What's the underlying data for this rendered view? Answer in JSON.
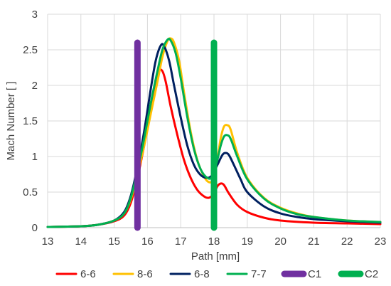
{
  "chart_data": {
    "type": "line",
    "title": "",
    "xlabel": "Path [mm]",
    "ylabel": "Mach Number [ ]",
    "xlim": [
      13,
      23
    ],
    "ylim": [
      0,
      3
    ],
    "xticks": [
      "13",
      "14",
      "15",
      "16",
      "17",
      "18",
      "19",
      "20",
      "21",
      "22",
      "23"
    ],
    "yticks": [
      "0",
      "0.5",
      "1",
      "1.5",
      "2",
      "2.5",
      "3"
    ],
    "grid": true,
    "legend": "bottom",
    "series": [
      {
        "name": "6-6",
        "color": "#ff0000",
        "points": [
          [
            13,
            0.01
          ],
          [
            14,
            0.02
          ],
          [
            14.5,
            0.04
          ],
          [
            15,
            0.09
          ],
          [
            15.3,
            0.17
          ],
          [
            15.5,
            0.35
          ],
          [
            15.7,
            0.7
          ],
          [
            15.9,
            1.15
          ],
          [
            16.1,
            1.65
          ],
          [
            16.25,
            2.0
          ],
          [
            16.35,
            2.2
          ],
          [
            16.45,
            2.2
          ],
          [
            16.55,
            2.05
          ],
          [
            16.7,
            1.7
          ],
          [
            16.9,
            1.3
          ],
          [
            17.1,
            0.95
          ],
          [
            17.3,
            0.7
          ],
          [
            17.5,
            0.53
          ],
          [
            17.7,
            0.44
          ],
          [
            17.85,
            0.42
          ],
          [
            18.0,
            0.48
          ],
          [
            18.1,
            0.58
          ],
          [
            18.2,
            0.62
          ],
          [
            18.3,
            0.6
          ],
          [
            18.45,
            0.48
          ],
          [
            18.7,
            0.32
          ],
          [
            19,
            0.22
          ],
          [
            19.5,
            0.14
          ],
          [
            20,
            0.1
          ],
          [
            21,
            0.07
          ],
          [
            22,
            0.06
          ],
          [
            23,
            0.05
          ]
        ]
      },
      {
        "name": "8-6",
        "color": "#ffc000",
        "points": [
          [
            13,
            0.01
          ],
          [
            14,
            0.02
          ],
          [
            14.5,
            0.04
          ],
          [
            15,
            0.1
          ],
          [
            15.3,
            0.2
          ],
          [
            15.5,
            0.4
          ],
          [
            15.7,
            0.75
          ],
          [
            15.9,
            1.15
          ],
          [
            16.1,
            1.6
          ],
          [
            16.3,
            2.05
          ],
          [
            16.45,
            2.4
          ],
          [
            16.6,
            2.62
          ],
          [
            16.7,
            2.66
          ],
          [
            16.8,
            2.6
          ],
          [
            16.95,
            2.35
          ],
          [
            17.1,
            1.9
          ],
          [
            17.3,
            1.35
          ],
          [
            17.5,
            0.95
          ],
          [
            17.7,
            0.72
          ],
          [
            17.85,
            0.64
          ],
          [
            18.0,
            0.68
          ],
          [
            18.1,
            0.95
          ],
          [
            18.2,
            1.25
          ],
          [
            18.3,
            1.42
          ],
          [
            18.4,
            1.44
          ],
          [
            18.5,
            1.38
          ],
          [
            18.7,
            1.05
          ],
          [
            19,
            0.7
          ],
          [
            19.5,
            0.42
          ],
          [
            20,
            0.28
          ],
          [
            20.5,
            0.2
          ],
          [
            21,
            0.15
          ],
          [
            22,
            0.1
          ],
          [
            23,
            0.08
          ]
        ]
      },
      {
        "name": "6-8",
        "color": "#002060",
        "points": [
          [
            13,
            0.01
          ],
          [
            14,
            0.02
          ],
          [
            14.5,
            0.04
          ],
          [
            15,
            0.1
          ],
          [
            15.3,
            0.22
          ],
          [
            15.5,
            0.45
          ],
          [
            15.7,
            0.85
          ],
          [
            15.9,
            1.35
          ],
          [
            16.1,
            1.95
          ],
          [
            16.25,
            2.35
          ],
          [
            16.4,
            2.56
          ],
          [
            16.5,
            2.55
          ],
          [
            16.65,
            2.35
          ],
          [
            16.8,
            2.0
          ],
          [
            17.0,
            1.55
          ],
          [
            17.2,
            1.15
          ],
          [
            17.4,
            0.88
          ],
          [
            17.6,
            0.74
          ],
          [
            17.8,
            0.7
          ],
          [
            17.95,
            0.74
          ],
          [
            18.1,
            0.88
          ],
          [
            18.25,
            1.02
          ],
          [
            18.35,
            1.05
          ],
          [
            18.45,
            1.02
          ],
          [
            18.6,
            0.88
          ],
          [
            18.8,
            0.68
          ],
          [
            19,
            0.5
          ],
          [
            19.5,
            0.3
          ],
          [
            20,
            0.2
          ],
          [
            20.5,
            0.15
          ],
          [
            21,
            0.12
          ],
          [
            22,
            0.09
          ],
          [
            23,
            0.07
          ]
        ]
      },
      {
        "name": "7-7",
        "color": "#00b050",
        "points": [
          [
            13,
            0.01
          ],
          [
            14,
            0.02
          ],
          [
            14.5,
            0.04
          ],
          [
            15,
            0.1
          ],
          [
            15.3,
            0.2
          ],
          [
            15.5,
            0.42
          ],
          [
            15.7,
            0.8
          ],
          [
            15.9,
            1.25
          ],
          [
            16.1,
            1.75
          ],
          [
            16.3,
            2.2
          ],
          [
            16.45,
            2.5
          ],
          [
            16.6,
            2.64
          ],
          [
            16.7,
            2.63
          ],
          [
            16.85,
            2.45
          ],
          [
            17.0,
            2.1
          ],
          [
            17.2,
            1.55
          ],
          [
            17.4,
            1.1
          ],
          [
            17.6,
            0.82
          ],
          [
            17.8,
            0.7
          ],
          [
            17.95,
            0.72
          ],
          [
            18.1,
            0.95
          ],
          [
            18.2,
            1.15
          ],
          [
            18.3,
            1.28
          ],
          [
            18.4,
            1.3
          ],
          [
            18.5,
            1.25
          ],
          [
            18.7,
            1.0
          ],
          [
            19,
            0.68
          ],
          [
            19.5,
            0.41
          ],
          [
            20,
            0.27
          ],
          [
            20.5,
            0.19
          ],
          [
            21,
            0.15
          ],
          [
            22,
            0.1
          ],
          [
            23,
            0.08
          ]
        ]
      },
      {
        "name": "C1",
        "color": "#7030a0",
        "marker": "vertical",
        "points": [
          [
            15.7,
            0
          ],
          [
            15.7,
            2.6
          ]
        ]
      },
      {
        "name": "C2",
        "color": "#00b050",
        "marker": "vertical",
        "points": [
          [
            18.0,
            0
          ],
          [
            18.0,
            2.6
          ]
        ]
      }
    ]
  }
}
